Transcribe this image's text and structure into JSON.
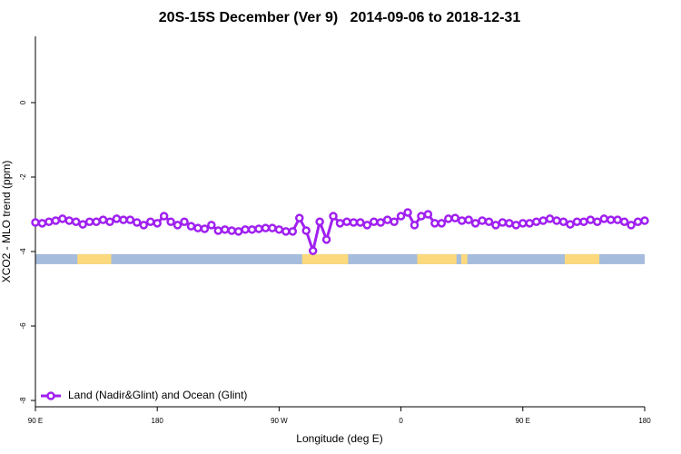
{
  "chart_data": {
    "type": "line",
    "title": "20S-15S December (Ver 9)   2014-09-06 to 2018-12-31",
    "x_label": "Longitude (deg E)",
    "y_label": "XCO2 - MLO trend (ppm)",
    "xlim": [
      90,
      540
    ],
    "xticks": [
      {
        "value": 90,
        "label": "90 E"
      },
      180,
      {
        "value": 270,
        "label": "90 W"
      },
      {
        "value": 360,
        "label": "0"
      },
      {
        "value": 450,
        "label": "90 E"
      },
      {
        "value": 540,
        "label": "180"
      }
    ],
    "ylim": [
      -8.17,
      1.78
    ],
    "yticks": [
      0,
      -2,
      -4,
      -6,
      -8
    ],
    "legend": "bottom-left",
    "x": [
      90,
      95,
      100,
      105,
      110,
      115,
      120,
      125,
      130,
      135,
      140,
      145,
      150,
      155,
      160,
      165,
      170,
      175,
      180,
      185,
      190,
      195,
      200,
      205,
      210,
      215,
      220,
      225,
      230,
      235,
      240,
      245,
      250,
      255,
      260,
      265,
      270,
      275,
      280,
      285,
      290,
      295,
      300,
      305,
      310,
      315,
      320,
      325,
      330,
      335,
      340,
      345,
      350,
      355,
      360,
      365,
      370,
      375,
      380,
      385,
      390,
      395,
      400,
      405,
      410,
      415,
      420,
      425,
      430,
      435,
      440,
      445,
      450,
      455,
      460,
      465,
      470,
      475,
      480,
      485,
      490,
      495,
      500,
      505,
      510,
      515,
      520,
      525,
      530,
      535,
      540
    ],
    "series": [
      {
        "name": "Land (Nadir&Glint) and Ocean (Glint)",
        "color": "#a020f0",
        "values": [
          -3.22,
          -3.24,
          -3.2,
          -3.17,
          -3.12,
          -3.17,
          -3.2,
          -3.27,
          -3.2,
          -3.2,
          -3.15,
          -3.2,
          -3.12,
          -3.15,
          -3.15,
          -3.22,
          -3.29,
          -3.2,
          -3.24,
          -3.05,
          -3.2,
          -3.29,
          -3.2,
          -3.32,
          -3.37,
          -3.39,
          -3.29,
          -3.44,
          -3.41,
          -3.44,
          -3.46,
          -3.41,
          -3.41,
          -3.39,
          -3.37,
          -3.37,
          -3.41,
          -3.46,
          -3.46,
          -3.1,
          -3.44,
          -3.98,
          -3.2,
          -3.68,
          -3.05,
          -3.24,
          -3.2,
          -3.22,
          -3.22,
          -3.29,
          -3.2,
          -3.22,
          -3.15,
          -3.2,
          -3.05,
          -2.95,
          -3.29,
          -3.05,
          -3.0,
          -3.24,
          -3.24,
          -3.12,
          -3.1,
          -3.17,
          -3.15,
          -3.24,
          -3.17,
          -3.2,
          -3.29,
          -3.22,
          -3.24,
          -3.29,
          -3.24,
          -3.24,
          -3.2,
          -3.17,
          -3.12,
          -3.17,
          -3.2,
          -3.27,
          -3.2,
          -3.2,
          -3.15,
          -3.2,
          -3.12,
          -3.15,
          -3.15,
          -3.2,
          -3.29,
          -3.2,
          -3.17
        ]
      }
    ],
    "surface_band": {
      "ylim": [
        -4.34,
        -4.07
      ],
      "ocean_color": "#a5bcdc",
      "land_color": "#fcd97d",
      "land_spans": [
        [
          121,
          146
        ],
        [
          287,
          321
        ],
        [
          372,
          401
        ],
        [
          404.5,
          409
        ],
        [
          481,
          506.5
        ]
      ]
    }
  }
}
